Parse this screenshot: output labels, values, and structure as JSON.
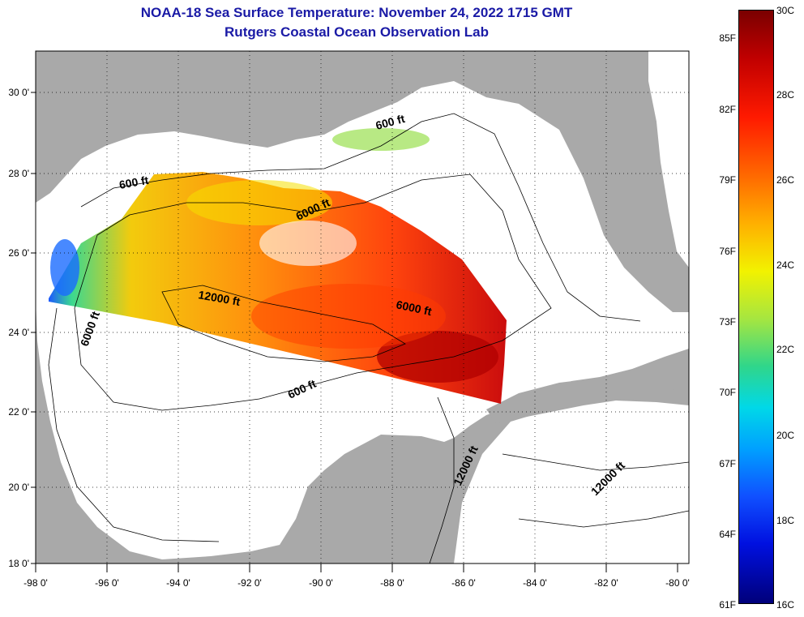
{
  "header": {
    "title": "NOAA-18 Sea Surface Temperature:  November 24, 2022 1715 GMT",
    "subtitle": "Rutgers Coastal Ocean Observation Lab"
  },
  "map": {
    "lat_labels": [
      "30 0'",
      "28 0'",
      "26 0'",
      "24 0'",
      "22 0'",
      "20 0'",
      "18 0'"
    ],
    "lon_labels": [
      "-98 0'",
      "-96 0'",
      "-94 0'",
      "-92 0'",
      "-90 0'",
      "-88 0'",
      "-86 0'",
      "-84 0'",
      "-82 0'",
      "-80 0'"
    ],
    "contour_labels": [
      "600 ft",
      "600 ft",
      "600 ft",
      "6000 ft",
      "6000 ft",
      "6000 ft",
      "12000 ft",
      "12000 ft",
      "12000 ft"
    ]
  },
  "colorbar": {
    "fahrenheit_labels": [
      "85F",
      "82F",
      "79F",
      "76F",
      "73F",
      "70F",
      "67F",
      "64F",
      "61F"
    ],
    "celsius_labels": [
      "30C",
      "28C",
      "26C",
      "24C",
      "22C",
      "20C",
      "18C",
      "16C"
    ],
    "range_celsius": [
      16,
      30
    ]
  },
  "colors": {
    "title": "#1a1aa6",
    "land": "#a9a9a9",
    "ocean_nodata": "#ffffff",
    "hot": "#c00000",
    "warm": "#ff7a00",
    "mild": "#f2f200",
    "cool": "#00d8e8",
    "cold": "#0010e0"
  }
}
